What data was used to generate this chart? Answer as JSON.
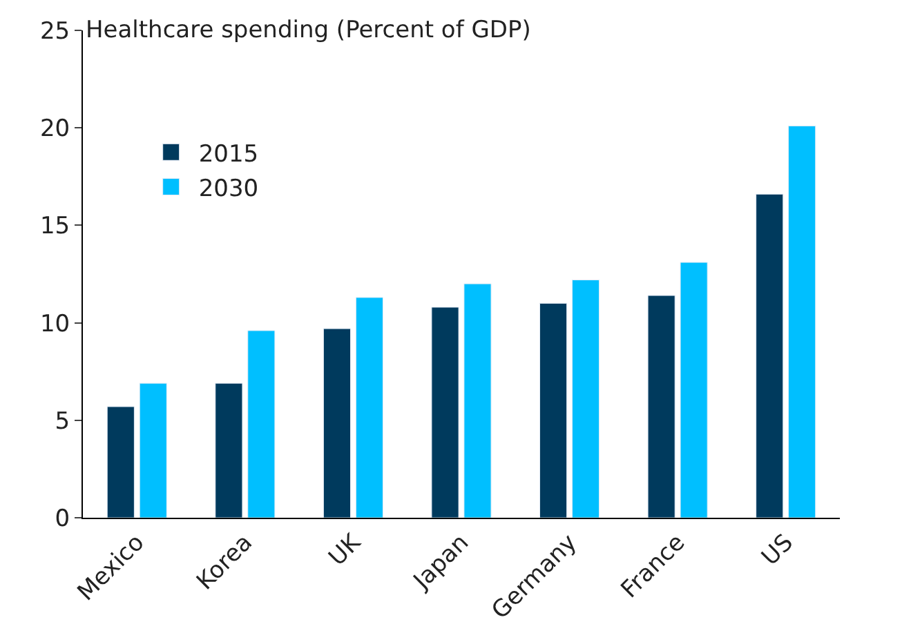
{
  "chart_data": {
    "type": "bar",
    "title": "Healthcare spending (Percent of GDP)",
    "categories": [
      "Mexico",
      "Korea",
      "UK",
      "Japan",
      "Germany",
      "France",
      "US"
    ],
    "series": [
      {
        "name": "2015",
        "color": "#003a5d",
        "values": [
          5.7,
          6.9,
          9.7,
          10.8,
          11.0,
          11.4,
          16.6
        ]
      },
      {
        "name": "2030",
        "color": "#00bfff",
        "values": [
          6.9,
          9.6,
          11.3,
          12.0,
          12.2,
          13.1,
          20.1
        ]
      }
    ],
    "ylim": [
      0,
      25
    ],
    "yticks": [
      0,
      5,
      10,
      15,
      20,
      25
    ],
    "legend": "top left"
  }
}
